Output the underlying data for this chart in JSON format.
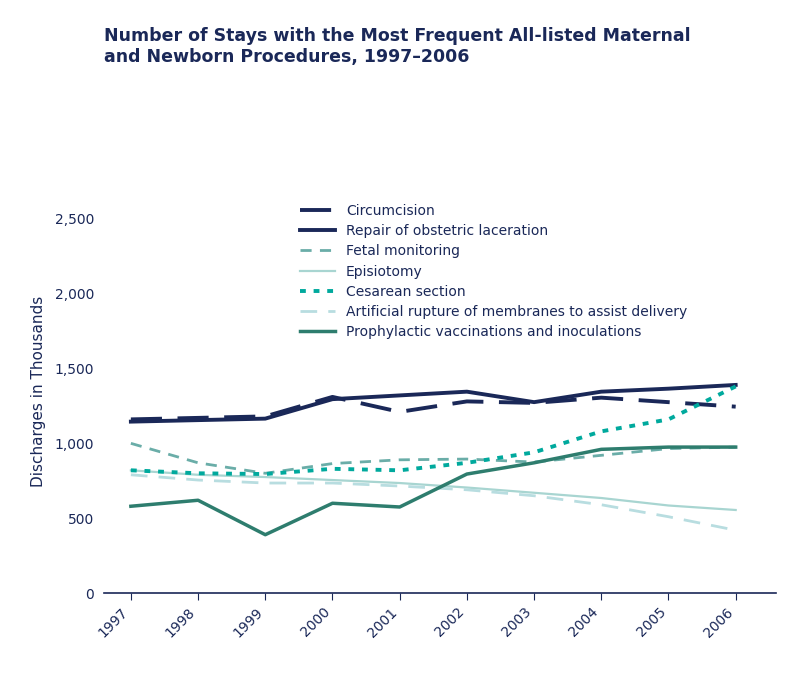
{
  "title": "Number of Stays with the Most Frequent All-listed Maternal\nand Newborn Procedures, 1997–2006",
  "ylabel": "Discharges in Thousands",
  "years": [
    1997,
    1998,
    1999,
    2000,
    2001,
    2002,
    2003,
    2004,
    2005,
    2006
  ],
  "series": [
    {
      "label": "Circumcision",
      "color": "#1a2858",
      "linestyle": "dashed",
      "dash_pattern": [
        8,
        4
      ],
      "linewidth": 2.8,
      "values": [
        1160,
        1170,
        1180,
        1310,
        1210,
        1280,
        1270,
        1305,
        1275,
        1245
      ]
    },
    {
      "label": "Repair of obstetric laceration",
      "color": "#1a2858",
      "linestyle": "solid",
      "linewidth": 2.8,
      "values": [
        1145,
        1155,
        1165,
        1295,
        1320,
        1345,
        1275,
        1345,
        1365,
        1390
      ]
    },
    {
      "label": "Fetal monitoring",
      "color": "#6aada8",
      "linestyle": "dashed",
      "dash_pattern": [
        4,
        3
      ],
      "linewidth": 2.0,
      "values": [
        1000,
        870,
        800,
        865,
        890,
        895,
        875,
        920,
        965,
        975
      ]
    },
    {
      "label": "Episiotomy",
      "color": "#a8d5d1",
      "linestyle": "solid",
      "linewidth": 1.6,
      "values": [
        820,
        790,
        775,
        755,
        735,
        705,
        670,
        635,
        585,
        555
      ]
    },
    {
      "label": "Cesarean section",
      "color": "#00a99d",
      "linestyle": "dotted",
      "dash_pattern": [
        1.5,
        2
      ],
      "linewidth": 2.8,
      "values": [
        820,
        800,
        795,
        830,
        820,
        870,
        940,
        1080,
        1160,
        1380
      ]
    },
    {
      "label": "Artificial rupture of membranes to assist delivery",
      "color": "#b8dde0",
      "linestyle": "dashed",
      "dash_pattern": [
        6,
        4
      ],
      "linewidth": 2.0,
      "values": [
        790,
        755,
        735,
        735,
        715,
        690,
        650,
        590,
        510,
        420
      ]
    },
    {
      "label": "Prophylactic vaccinations and inoculations",
      "color": "#2e7d6e",
      "linestyle": "solid",
      "linewidth": 2.5,
      "values": [
        580,
        620,
        390,
        600,
        575,
        795,
        870,
        960,
        975,
        975
      ]
    }
  ],
  "ylim": [
    0,
    2700
  ],
  "yticks": [
    0,
    500,
    1000,
    1500,
    2000,
    2500
  ],
  "xlim": [
    1996.6,
    2006.6
  ],
  "background_color": "#ffffff",
  "title_color": "#1a2858",
  "axis_color": "#1a2858",
  "title_fontsize": 12.5,
  "legend_fontsize": 10,
  "tick_fontsize": 10
}
